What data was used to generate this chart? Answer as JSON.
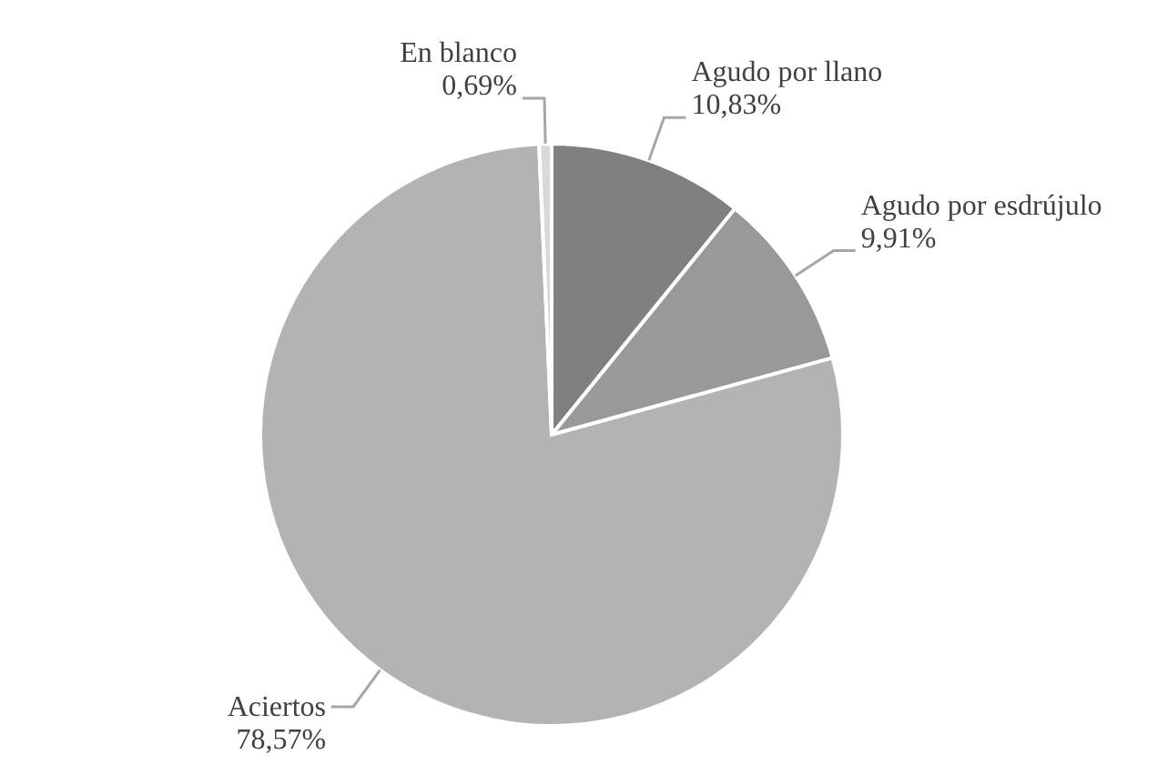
{
  "chart_data": {
    "type": "pie",
    "categories": [
      "Agudo por llano",
      "Agudo por esdrújulo",
      "Aciertos",
      "En blanco"
    ],
    "values": [
      10.83,
      9.91,
      78.57,
      0.69
    ],
    "value_labels": [
      "10,83%",
      "9,91%",
      "78,57%",
      "0,69%"
    ],
    "colors": [
      "#808080",
      "#999999",
      "#b3b3b3",
      "#d9d9d9"
    ]
  }
}
